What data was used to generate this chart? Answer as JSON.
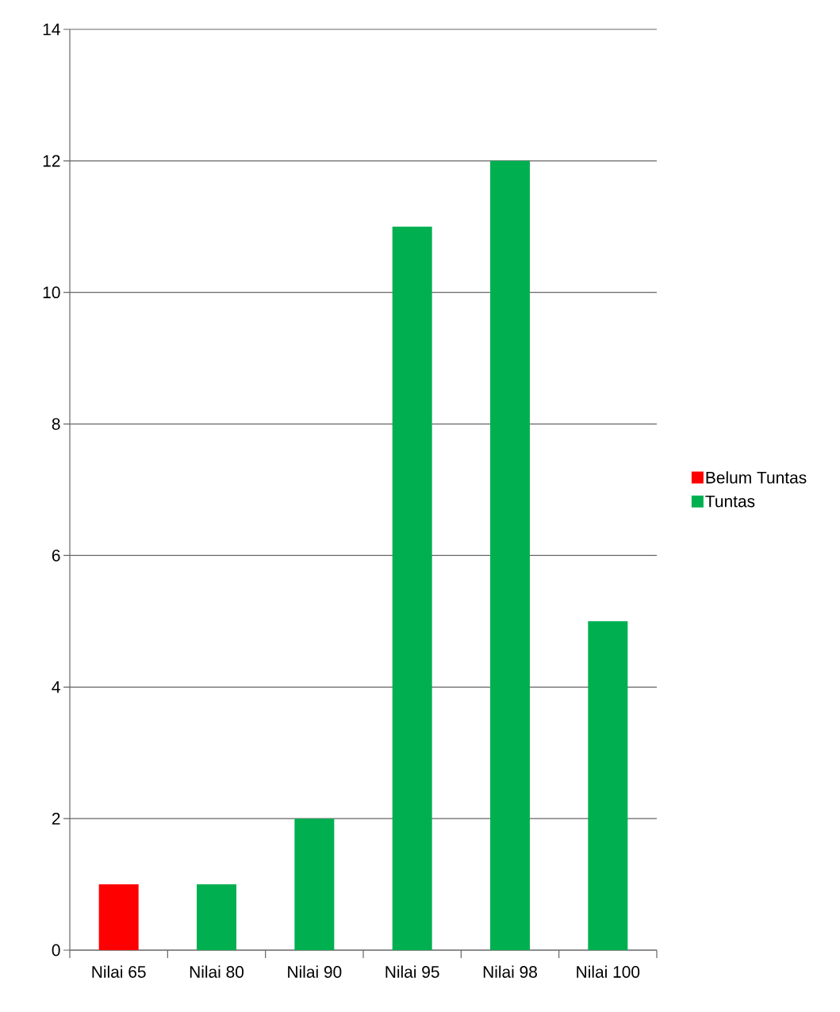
{
  "chart_data": {
    "type": "bar",
    "categories": [
      "Nilai 65",
      "Nilai 80",
      "Nilai 90",
      "Nilai 95",
      "Nilai 98",
      "Nilai 100"
    ],
    "series": [
      {
        "name": "Belum Tuntas",
        "color": "#ff0000",
        "values": [
          1,
          null,
          null,
          null,
          null,
          null
        ]
      },
      {
        "name": "Tuntas",
        "color": "#00b050",
        "values": [
          null,
          1,
          2,
          11,
          12,
          5
        ]
      }
    ],
    "ylim": [
      0,
      14
    ],
    "yticks": [
      0,
      2,
      4,
      6,
      8,
      10,
      12,
      14
    ],
    "grid": "y",
    "legend": "right"
  }
}
